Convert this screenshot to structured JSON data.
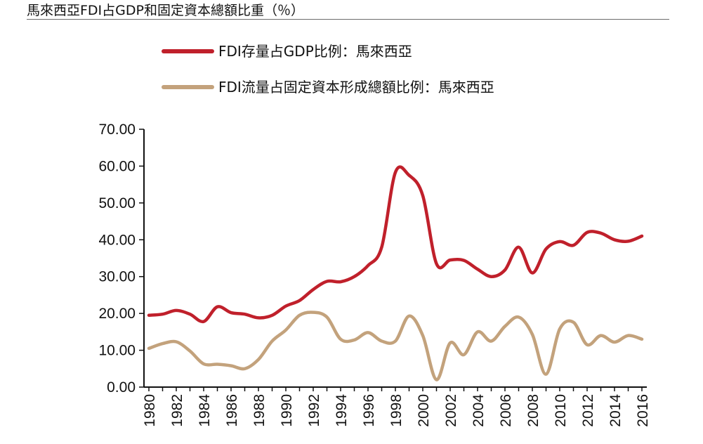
{
  "title": "馬來西亞FDI占GDP和固定資本總額比重（％）",
  "chart_data": {
    "type": "line",
    "title": "馬來西亞FDI占GDP和固定資本總額比重（％）",
    "xlabel": "",
    "ylabel": "",
    "ylim": [
      0,
      70
    ],
    "grid": false,
    "legend_position": "top",
    "x": [
      1980,
      1981,
      1982,
      1983,
      1984,
      1985,
      1986,
      1987,
      1988,
      1989,
      1990,
      1991,
      1992,
      1993,
      1994,
      1995,
      1996,
      1997,
      1998,
      1999,
      2000,
      2001,
      2002,
      2003,
      2004,
      2005,
      2006,
      2007,
      2008,
      2009,
      2010,
      2011,
      2012,
      2013,
      2014,
      2015,
      2016
    ],
    "x_tick_labels": [
      "1980",
      "1982",
      "1984",
      "1986",
      "1988",
      "1990",
      "1992",
      "1994",
      "1996",
      "1998",
      "2000",
      "2002",
      "2004",
      "2006",
      "2008",
      "2010",
      "2012",
      "2014",
      "2016"
    ],
    "y_tick_labels": [
      "0.00",
      "10.00",
      "20.00",
      "30.00",
      "40.00",
      "50.00",
      "60.00",
      "70.00"
    ],
    "series": [
      {
        "name": "FDI存量占GDP比例：馬來西亞",
        "color": "#c0202b",
        "values": [
          19.5,
          19.8,
          20.8,
          19.8,
          17.8,
          21.8,
          20.2,
          19.8,
          18.8,
          19.5,
          22.0,
          23.5,
          26.5,
          28.7,
          28.6,
          30.0,
          33.0,
          38.0,
          58.3,
          57.5,
          52.0,
          33.5,
          34.5,
          34.4,
          32.0,
          30.0,
          31.8,
          38.0,
          31.0,
          37.5,
          39.5,
          38.5,
          42.0,
          41.8,
          40.0,
          39.6,
          41.0
        ]
      },
      {
        "name": "FDI流量占固定資本形成總額比例：馬來西亞",
        "color": "#c3a27c",
        "values": [
          10.5,
          11.8,
          12.3,
          9.8,
          6.3,
          6.2,
          5.8,
          5.0,
          7.5,
          12.5,
          15.5,
          19.5,
          20.3,
          19.0,
          13.0,
          12.8,
          14.8,
          12.5,
          12.5,
          19.3,
          14.0,
          2.0,
          12.0,
          8.8,
          15.0,
          12.5,
          16.5,
          19.0,
          14.3,
          3.5,
          15.8,
          17.6,
          11.5,
          14.0,
          12.2,
          14.0,
          13.0
        ]
      }
    ]
  }
}
